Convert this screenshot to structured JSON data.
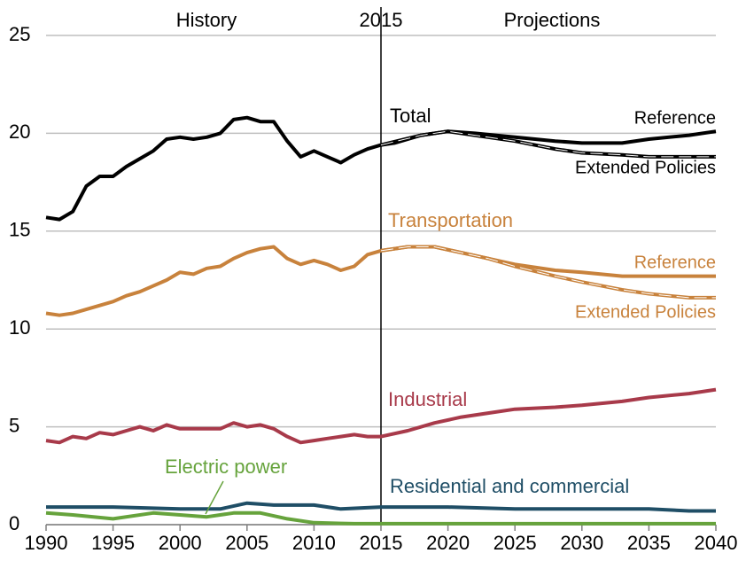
{
  "chart_data": {
    "type": "line",
    "divider": 2015,
    "annotations": [
      "History",
      "Projections"
    ],
    "xlim": [
      1990,
      2040
    ],
    "xticks": [
      1990,
      1995,
      2000,
      2005,
      2010,
      2015,
      2020,
      2025,
      2030,
      2035,
      2040
    ],
    "ylim": [
      0,
      25
    ],
    "yticks": [
      0,
      5,
      10,
      15,
      20,
      25
    ],
    "grid": true,
    "series": [
      {
        "name": "Total",
        "color": "#000000",
        "x": [
          1990,
          1991,
          1992,
          1993,
          1994,
          1995,
          1996,
          1997,
          1998,
          1999,
          2000,
          2001,
          2002,
          2003,
          2004,
          2005,
          2006,
          2007,
          2008,
          2009,
          2010,
          2011,
          2012,
          2013,
          2014,
          2015
        ],
        "values": [
          15.7,
          15.6,
          16.0,
          17.3,
          17.8,
          17.8,
          18.3,
          18.7,
          19.1,
          19.7,
          19.8,
          19.7,
          19.8,
          20.0,
          20.7,
          20.8,
          20.6,
          20.6,
          19.6,
          18.8,
          19.1,
          18.8,
          18.5,
          18.9,
          19.2,
          19.4
        ]
      },
      {
        "name": "Reference",
        "color": "#000000",
        "x": [
          2015,
          2016,
          2018,
          2020,
          2022,
          2025,
          2028,
          2030,
          2033,
          2035,
          2038,
          2040
        ],
        "values": [
          19.4,
          19.5,
          19.9,
          20.1,
          20.0,
          19.8,
          19.6,
          19.5,
          19.5,
          19.7,
          19.9,
          20.1
        ]
      },
      {
        "name": "Extended Policies",
        "color": "#000000",
        "dashed": true,
        "x": [
          2015,
          2018,
          2020,
          2022,
          2025,
          2028,
          2030,
          2033,
          2035,
          2038,
          2040
        ],
        "values": [
          19.4,
          19.9,
          20.1,
          19.9,
          19.6,
          19.2,
          19.0,
          18.9,
          18.8,
          18.8,
          18.8
        ]
      },
      {
        "name": "Transportation",
        "color": "#c8823c",
        "x": [
          1990,
          1991,
          1992,
          1993,
          1994,
          1995,
          1996,
          1997,
          1998,
          1999,
          2000,
          2001,
          2002,
          2003,
          2004,
          2005,
          2006,
          2007,
          2008,
          2009,
          2010,
          2011,
          2012,
          2013,
          2014,
          2015
        ],
        "values": [
          10.8,
          10.7,
          10.8,
          11.0,
          11.2,
          11.4,
          11.7,
          11.9,
          12.2,
          12.5,
          12.9,
          12.8,
          13.1,
          13.2,
          13.6,
          13.9,
          14.1,
          14.2,
          13.6,
          13.3,
          13.5,
          13.3,
          13.0,
          13.2,
          13.8,
          14.0
        ]
      },
      {
        "name": "Reference",
        "color": "#c8823c",
        "x": [
          2015,
          2017,
          2019,
          2021,
          2023,
          2025,
          2028,
          2030,
          2033,
          2035,
          2038,
          2040
        ],
        "values": [
          14.0,
          14.2,
          14.2,
          13.9,
          13.6,
          13.3,
          13.0,
          12.9,
          12.7,
          12.7,
          12.7,
          12.7
        ]
      },
      {
        "name": "Extended Policies",
        "color": "#c8823c",
        "dashed": true,
        "x": [
          2015,
          2017,
          2019,
          2021,
          2023,
          2025,
          2028,
          2030,
          2033,
          2035,
          2038,
          2040
        ],
        "values": [
          14.0,
          14.2,
          14.2,
          13.9,
          13.6,
          13.2,
          12.7,
          12.4,
          12.0,
          11.8,
          11.6,
          11.6
        ]
      },
      {
        "name": "Industrial",
        "color": "#a83a4a",
        "x": [
          1990,
          1991,
          1992,
          1993,
          1994,
          1995,
          1996,
          1997,
          1998,
          1999,
          2000,
          2001,
          2002,
          2003,
          2004,
          2005,
          2006,
          2007,
          2008,
          2009,
          2010,
          2011,
          2012,
          2013,
          2014,
          2015,
          2017,
          2019,
          2021,
          2023,
          2025,
          2028,
          2030,
          2033,
          2035,
          2038,
          2040
        ],
        "values": [
          4.3,
          4.2,
          4.5,
          4.4,
          4.7,
          4.6,
          4.8,
          5.0,
          4.8,
          5.1,
          4.9,
          4.9,
          4.9,
          4.9,
          5.2,
          5.0,
          5.1,
          4.9,
          4.5,
          4.2,
          4.3,
          4.4,
          4.5,
          4.6,
          4.5,
          4.5,
          4.8,
          5.2,
          5.5,
          5.7,
          5.9,
          6.0,
          6.1,
          6.3,
          6.5,
          6.7,
          6.9
        ]
      },
      {
        "name": "Residential and commercial",
        "color": "#1f4e66",
        "x": [
          1990,
          1995,
          2000,
          2003,
          2005,
          2007,
          2010,
          2012,
          2015,
          2020,
          2025,
          2030,
          2035,
          2038,
          2040
        ],
        "values": [
          0.9,
          0.9,
          0.8,
          0.8,
          1.1,
          1.0,
          1.0,
          0.8,
          0.9,
          0.9,
          0.8,
          0.8,
          0.8,
          0.7,
          0.7
        ]
      },
      {
        "name": "Electric power",
        "color": "#66a33c",
        "x": [
          1990,
          1992,
          1995,
          1998,
          2000,
          2002,
          2004,
          2006,
          2008,
          2010,
          2013,
          2015,
          2020,
          2030,
          2040
        ],
        "values": [
          0.6,
          0.5,
          0.3,
          0.6,
          0.5,
          0.4,
          0.6,
          0.6,
          0.3,
          0.1,
          0.05,
          0.05,
          0.05,
          0.05,
          0.05
        ]
      }
    ]
  }
}
